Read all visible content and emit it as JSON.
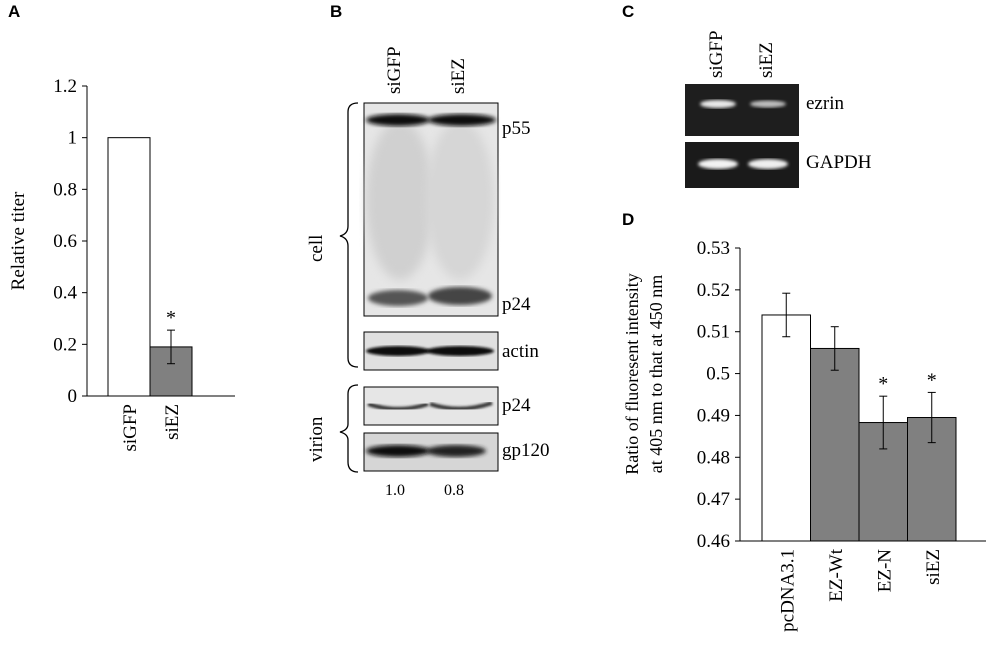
{
  "panels": {
    "a": "A",
    "b": "B",
    "c": "C",
    "d": "D"
  },
  "chart_data": [
    {
      "type": "bar",
      "panel": "A",
      "categories": [
        "siGFP",
        "siEZ"
      ],
      "values": [
        1.0,
        0.19
      ],
      "errors": [
        null,
        0.065
      ],
      "significance": [
        "",
        "*"
      ],
      "ylabel": "Relative titer",
      "xlabel": "",
      "ylim": [
        0,
        1.2
      ],
      "yticks": [
        "0",
        "0.2",
        "0.4",
        "0.6",
        "0.8",
        "1",
        "1.2"
      ],
      "bar_colors": [
        "#ffffff",
        "#808080"
      ],
      "grid": false
    },
    {
      "type": "bar",
      "panel": "D",
      "categories": [
        "pcDNA3.1",
        "EZ-Wt",
        "EZ-N",
        "siEZ"
      ],
      "values": [
        0.514,
        0.506,
        0.4883,
        0.4895
      ],
      "errors": [
        0.0052,
        0.0052,
        0.0063,
        0.006
      ],
      "significance": [
        "",
        "",
        "*",
        "*"
      ],
      "ylabel_lines": [
        "Ratio of fluoresent intensity",
        "at 405 nm to that at 450 nm"
      ],
      "xlabel": "",
      "ylim": [
        0.46,
        0.53
      ],
      "yticks": [
        "0.46",
        "0.47",
        "0.48",
        "0.49",
        "0.5",
        "0.51",
        "0.52",
        "0.53"
      ],
      "bar_colors": [
        "#ffffff",
        "#808080",
        "#808080",
        "#808080"
      ],
      "grid": false
    }
  ],
  "blot_b": {
    "lanes": [
      "siGFP",
      "siEZ"
    ],
    "group_cell": "cell",
    "group_virion": "virion",
    "bands": [
      "p55",
      "p24",
      "actin",
      "p24",
      "gp120"
    ],
    "quant": [
      "1.0",
      "0.8"
    ]
  },
  "gel_c": {
    "lanes": [
      "siGFP",
      "siEZ"
    ],
    "bands": [
      "ezrin",
      "GAPDH"
    ]
  }
}
